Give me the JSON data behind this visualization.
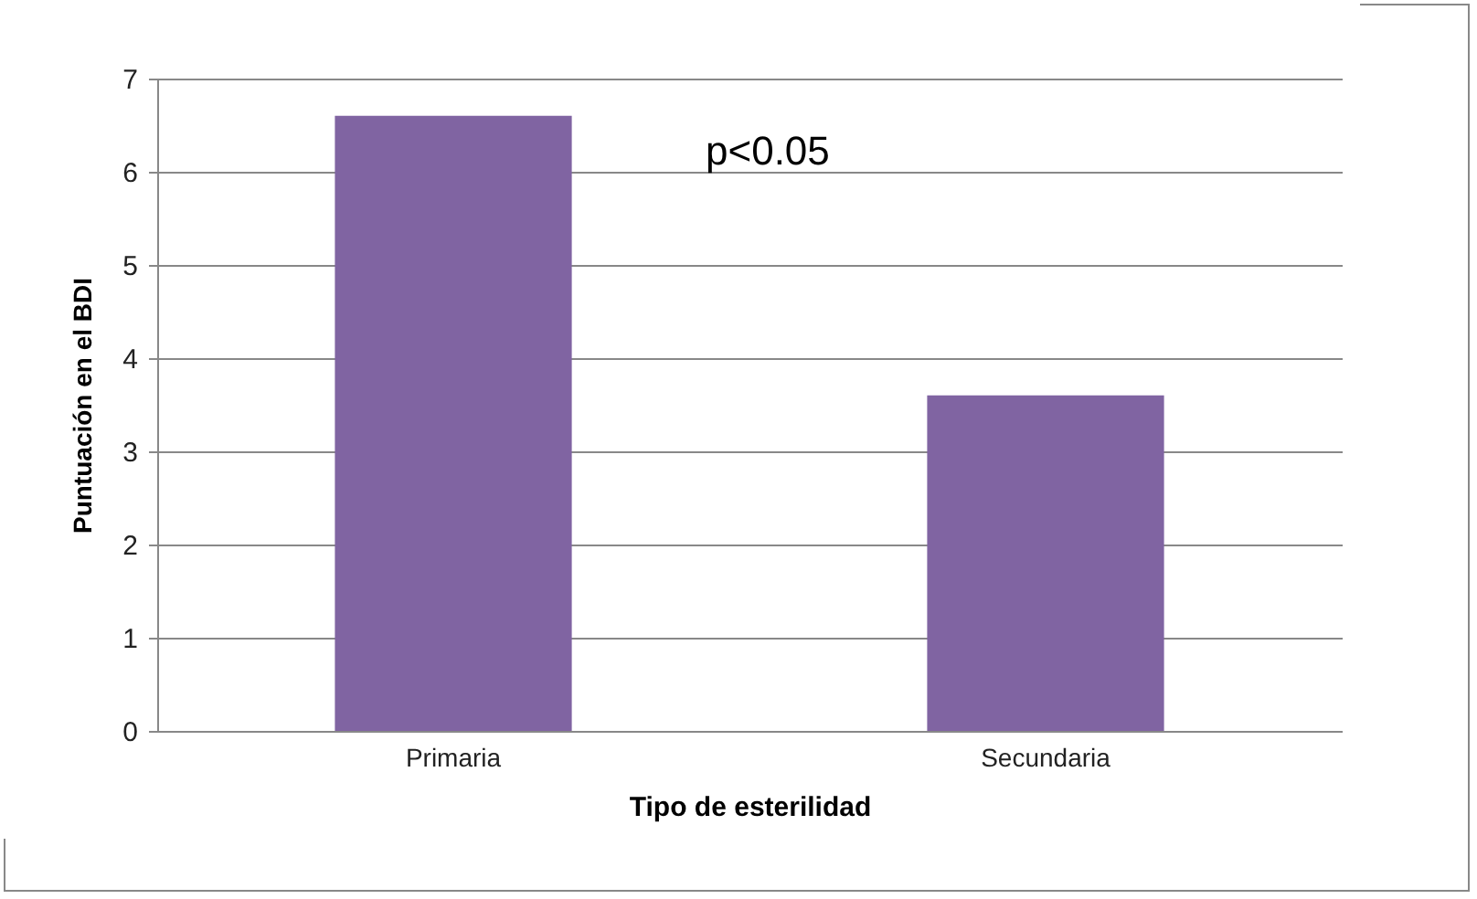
{
  "chart_data": {
    "type": "bar",
    "xlabel": "Tipo de esterilidad",
    "ylabel": "Puntuación en el BDI",
    "categories": [
      "Primaria",
      "Secundaria"
    ],
    "values": [
      6.6,
      3.6
    ],
    "color": "#8064a2",
    "ylim": [
      0,
      7
    ],
    "yticks": [
      0,
      1,
      2,
      3,
      4,
      5,
      6,
      7
    ],
    "grid": "y",
    "annotations": [
      "p<0.05"
    ]
  }
}
